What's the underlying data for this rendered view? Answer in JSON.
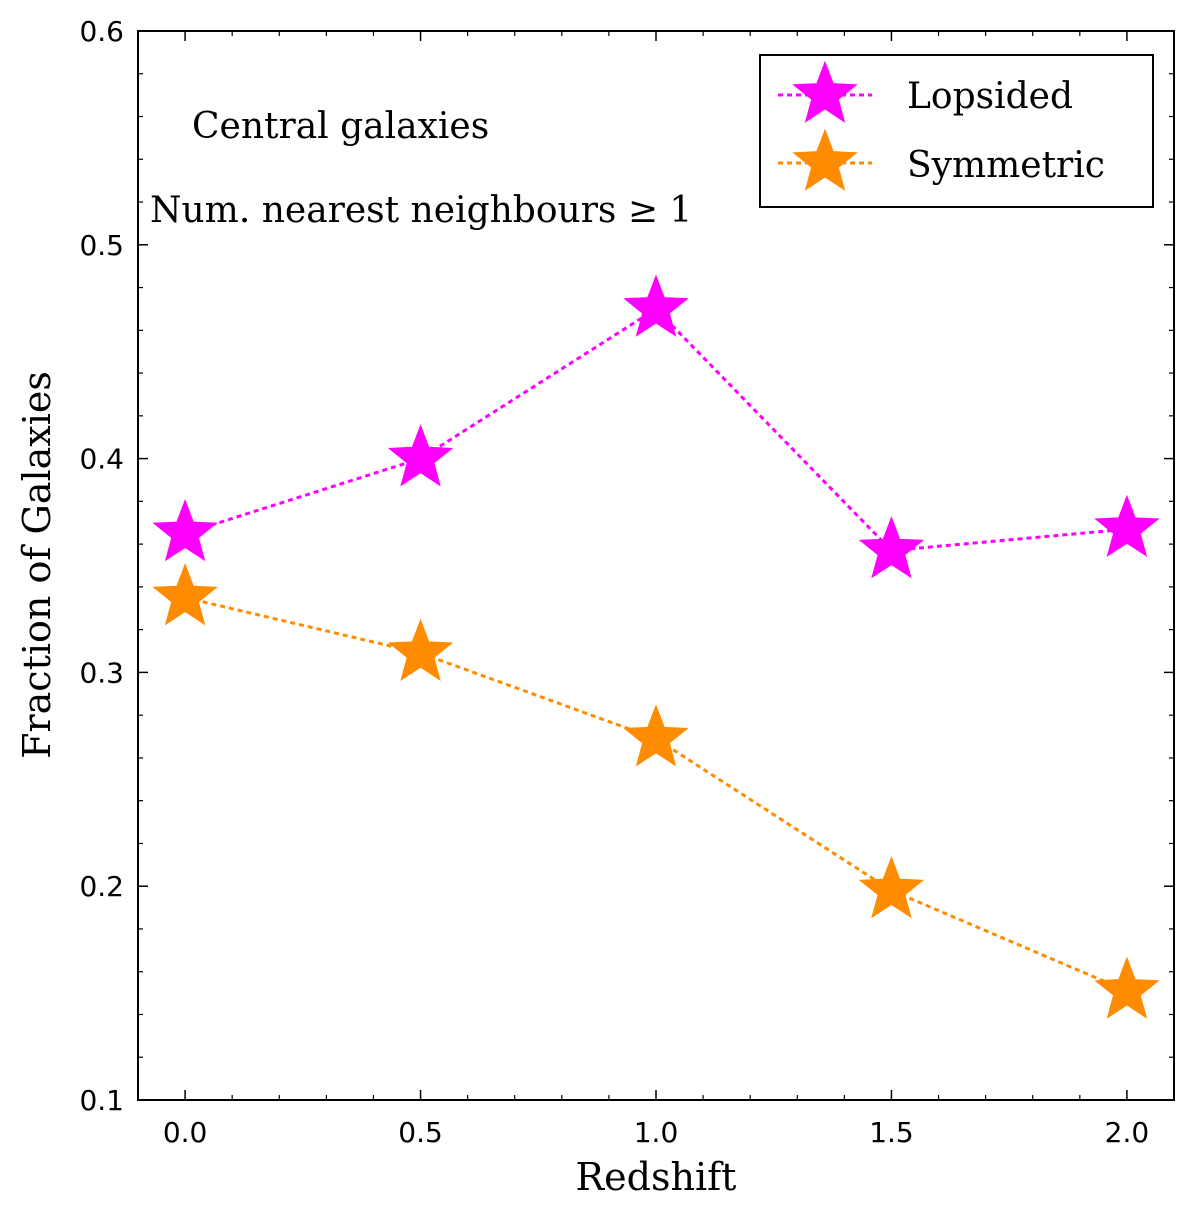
{
  "chart_data": {
    "type": "line",
    "title": "",
    "xlabel": "Redshift",
    "ylabel": "Fraction of Galaxies",
    "xlim": [
      -0.1,
      2.1
    ],
    "ylim": [
      0.1,
      0.6
    ],
    "x": [
      0.0,
      0.5,
      1.0,
      1.5,
      2.0
    ],
    "xticks": [
      "0.0",
      "0.5",
      "1.0",
      "1.5",
      "2.0"
    ],
    "yticks": [
      "0.1",
      "0.2",
      "0.3",
      "0.4",
      "0.5",
      "0.6"
    ],
    "series": [
      {
        "name": "Lopsided",
        "color": "#ff00ff",
        "marker": "star",
        "linestyle": "dotted",
        "values": [
          0.365,
          0.4,
          0.47,
          0.357,
          0.367
        ]
      },
      {
        "name": "Symmetric",
        "color": "#ff8c00",
        "marker": "star",
        "linestyle": "dotted",
        "values": [
          0.335,
          0.309,
          0.269,
          0.198,
          0.151
        ]
      }
    ],
    "annotations": [
      "Central galaxies",
      "Num. nearest neighbours ≥ 1"
    ],
    "legend": "top-right",
    "grid": false
  }
}
